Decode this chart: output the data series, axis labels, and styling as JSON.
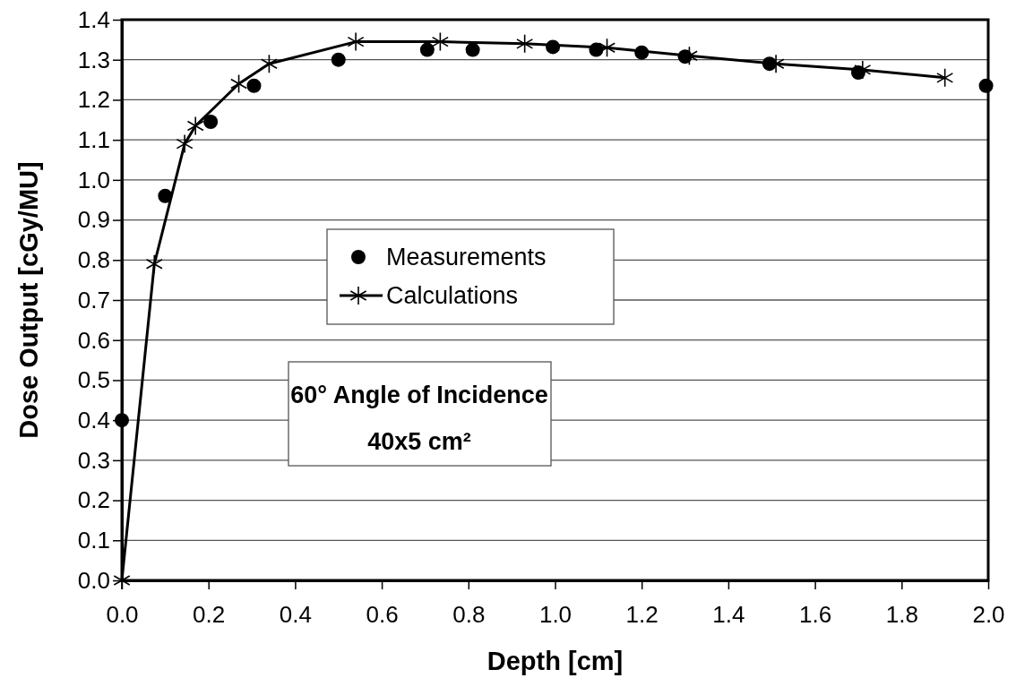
{
  "chart_data": {
    "type": "scatter",
    "xlabel": "Depth [cm]",
    "ylabel": "Dose Output [cGy/MU]",
    "xlim": [
      0,
      2.0
    ],
    "xticks": [
      {
        "value": 0,
        "label": "0.0"
      },
      0.2,
      0.4,
      0.6,
      0.8,
      {
        "value": 1,
        "label": "1.0"
      },
      1.2,
      1.4,
      1.6,
      1.8,
      {
        "value": 2,
        "label": "2.0"
      }
    ],
    "ylim": [
      0,
      1.4
    ],
    "yticks": [
      {
        "value": 0,
        "label": "0.0"
      },
      0.1,
      0.2,
      0.3,
      0.4,
      0.5,
      0.6,
      0.7,
      0.8,
      0.9,
      {
        "value": 1,
        "label": "1.0"
      },
      1.1,
      1.2,
      1.3,
      1.4
    ],
    "grid": "y",
    "legend": "center",
    "series": [
      {
        "name": "Measurements",
        "marker": "circle",
        "color": "#000000",
        "x": [
          0,
          0.1,
          0.205,
          0.305,
          0.5,
          0.705,
          0.81,
          0.995,
          1.095,
          1.2,
          1.3,
          1.495,
          1.7,
          1.995
        ],
        "values": [
          0.4,
          0.96,
          1.145,
          1.235,
          1.3,
          1.325,
          1.325,
          1.332,
          1.325,
          1.318,
          1.308,
          1.29,
          1.268,
          1.235
        ]
      },
      {
        "name": "Calculations",
        "type": "line",
        "marker": "cross",
        "line_style": "solid",
        "color": "#000000",
        "x": [
          0,
          0.075,
          0.145,
          0.17,
          0.27,
          0.34,
          0.54,
          0.735,
          0.93,
          1.12,
          1.31,
          1.51,
          1.71,
          1.9
        ],
        "values": [
          0,
          0.79,
          1.09,
          1.135,
          1.24,
          1.29,
          1.345,
          1.345,
          1.34,
          1.33,
          1.31,
          1.29,
          1.275,
          1.255
        ]
      }
    ],
    "annotations": [
      "60° Angle of Incidence",
      "40x5 cm²"
    ]
  }
}
